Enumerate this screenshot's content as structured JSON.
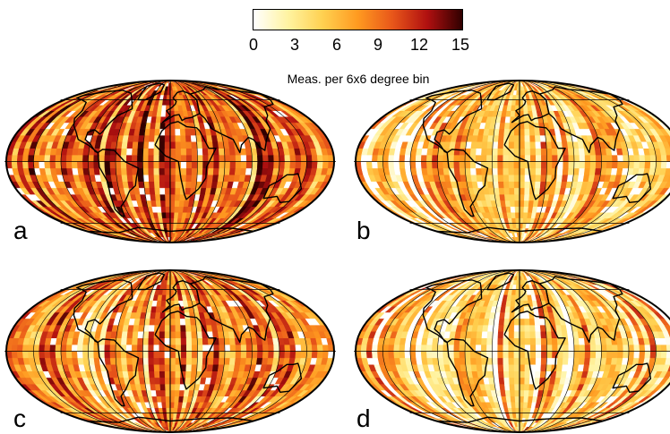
{
  "colorbar": {
    "title": "Meas. per 6x6 degree bin",
    "ticks": [
      "0",
      "3",
      "6",
      "9",
      "12",
      "15"
    ],
    "tick_values": [
      0,
      3,
      6,
      9,
      12,
      15
    ],
    "range": [
      0,
      15
    ],
    "colors": [
      "#ffffff",
      "#fff3a0",
      "#ffd050",
      "#ff9a20",
      "#e8561a",
      "#b01010",
      "#300000"
    ]
  },
  "projection": "Mollweide",
  "panels": [
    {
      "label": "a",
      "mean_level": 9.5
    },
    {
      "label": "b",
      "mean_level": 5.0
    },
    {
      "label": "c",
      "mean_level": 7.0
    },
    {
      "label": "d",
      "mean_level": 4.5
    }
  ]
}
